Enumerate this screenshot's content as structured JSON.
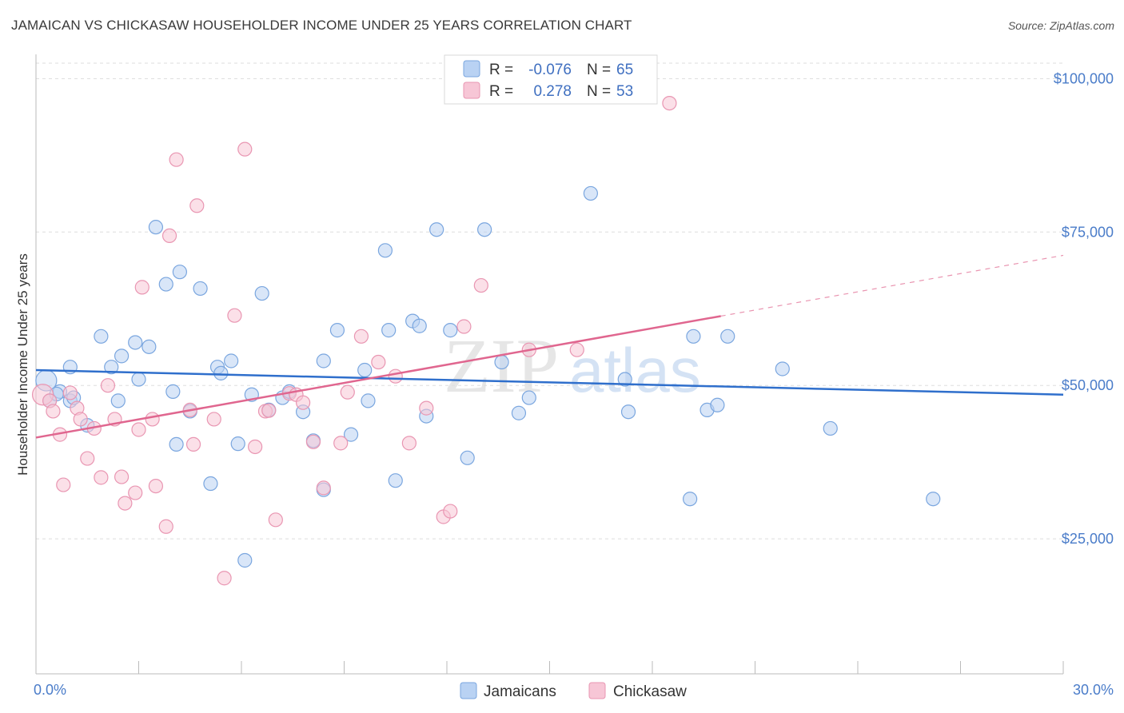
{
  "header": {
    "title": "JAMAICAN VS CHICKASAW HOUSEHOLDER INCOME UNDER 25 YEARS CORRELATION CHART",
    "source": "Source: ZipAtlas.com"
  },
  "watermark": {
    "zip": "ZIP",
    "atlas": "atlas"
  },
  "colors": {
    "jamaican_fill": "#b9d2f3",
    "jamaican_stroke": "#7aa6df",
    "jamaican_line": "#2f6fcc",
    "chickasaw_fill": "#f7c6d6",
    "chickasaw_stroke": "#e996b2",
    "chickasaw_line": "#e0668f",
    "tick_text": "#4a7cc9",
    "grid": "#dddddd"
  },
  "legend": {
    "r_label": "R =",
    "n_label": "N =",
    "rows": [
      {
        "series": "Jamaicans",
        "r": "-0.076",
        "n": "65"
      },
      {
        "series": "Chickasaw",
        "r": "0.278",
        "n": "53"
      }
    ]
  },
  "chart_data": {
    "type": "scatter",
    "title": "JAMAICAN VS CHICKASAW HOUSEHOLDER INCOME UNDER 25 YEARS CORRELATION CHART",
    "xlabel": "",
    "ylabel": "Householder Income Under 25 years",
    "xlim": [
      0,
      30
    ],
    "ylim": [
      3000,
      105000
    ],
    "x_tick_labels": [
      "0.0%",
      "30.0%"
    ],
    "y_ticks": [
      25000,
      50000,
      75000,
      100000
    ],
    "y_tick_labels": [
      "$25,000",
      "$50,000",
      "$75,000",
      "$100,000"
    ],
    "grid": true,
    "series": [
      {
        "name": "Jamaicans",
        "points": [
          [
            0.3,
            50800
          ],
          [
            0.4,
            47500
          ],
          [
            0.7,
            49000
          ],
          [
            1.0,
            53000
          ],
          [
            1.0,
            47500
          ],
          [
            1.5,
            43500
          ],
          [
            1.9,
            58000
          ],
          [
            2.2,
            53000
          ],
          [
            2.4,
            47500
          ],
          [
            2.5,
            54800
          ],
          [
            2.9,
            57000
          ],
          [
            3.0,
            51000
          ],
          [
            3.3,
            56300
          ],
          [
            3.5,
            75800
          ],
          [
            3.8,
            66500
          ],
          [
            4.0,
            49000
          ],
          [
            4.1,
            40400
          ],
          [
            4.2,
            68500
          ],
          [
            4.5,
            45800
          ],
          [
            4.8,
            65800
          ],
          [
            5.1,
            34000
          ],
          [
            5.3,
            53000
          ],
          [
            5.4,
            52000
          ],
          [
            5.7,
            54000
          ],
          [
            5.9,
            40500
          ],
          [
            6.1,
            21500
          ],
          [
            6.3,
            48500
          ],
          [
            6.6,
            65000
          ],
          [
            6.8,
            46000
          ],
          [
            7.2,
            48000
          ],
          [
            7.4,
            49000
          ],
          [
            7.8,
            45700
          ],
          [
            8.1,
            41000
          ],
          [
            8.4,
            54000
          ],
          [
            8.4,
            33000
          ],
          [
            8.8,
            59000
          ],
          [
            9.2,
            42000
          ],
          [
            9.6,
            52500
          ],
          [
            9.7,
            47500
          ],
          [
            10.2,
            72000
          ],
          [
            10.3,
            59000
          ],
          [
            10.5,
            34500
          ],
          [
            11.0,
            60500
          ],
          [
            11.2,
            59700
          ],
          [
            11.4,
            45000
          ],
          [
            11.7,
            75400
          ],
          [
            12.1,
            59000
          ],
          [
            12.6,
            38200
          ],
          [
            13.1,
            75400
          ],
          [
            13.6,
            53800
          ],
          [
            14.1,
            45500
          ],
          [
            14.4,
            48000
          ],
          [
            16.2,
            81300
          ],
          [
            17.2,
            51000
          ],
          [
            17.3,
            45700
          ],
          [
            19.1,
            31500
          ],
          [
            19.2,
            58000
          ],
          [
            19.6,
            46000
          ],
          [
            19.9,
            46800
          ],
          [
            20.2,
            58000
          ],
          [
            21.8,
            52700
          ],
          [
            23.2,
            43000
          ],
          [
            26.2,
            31500
          ],
          [
            0.6,
            48600
          ],
          [
            1.1,
            48000
          ]
        ],
        "trend": {
          "x": [
            0,
            30
          ],
          "y": [
            52500,
            48500
          ]
        }
      },
      {
        "name": "Chickasaw",
        "points": [
          [
            0.2,
            48500
          ],
          [
            0.4,
            47500
          ],
          [
            0.5,
            45800
          ],
          [
            0.7,
            42000
          ],
          [
            0.8,
            33800
          ],
          [
            1.0,
            48800
          ],
          [
            1.2,
            46300
          ],
          [
            1.3,
            44500
          ],
          [
            1.5,
            38100
          ],
          [
            1.7,
            43000
          ],
          [
            1.9,
            35000
          ],
          [
            2.1,
            50000
          ],
          [
            2.3,
            44500
          ],
          [
            2.5,
            35100
          ],
          [
            2.6,
            30800
          ],
          [
            2.9,
            32500
          ],
          [
            3.0,
            42800
          ],
          [
            3.1,
            66000
          ],
          [
            3.4,
            44500
          ],
          [
            3.5,
            33600
          ],
          [
            3.8,
            27000
          ],
          [
            3.9,
            74400
          ],
          [
            4.1,
            86800
          ],
          [
            4.5,
            46000
          ],
          [
            4.6,
            40400
          ],
          [
            4.7,
            79300
          ],
          [
            5.2,
            44500
          ],
          [
            5.5,
            18600
          ],
          [
            5.8,
            61400
          ],
          [
            6.1,
            88500
          ],
          [
            6.4,
            40000
          ],
          [
            6.7,
            45800
          ],
          [
            6.8,
            45900
          ],
          [
            7.0,
            28100
          ],
          [
            7.4,
            48700
          ],
          [
            7.6,
            48500
          ],
          [
            7.8,
            47200
          ],
          [
            8.1,
            40800
          ],
          [
            8.4,
            33300
          ],
          [
            8.9,
            40600
          ],
          [
            9.1,
            48900
          ],
          [
            9.5,
            58000
          ],
          [
            10.0,
            53800
          ],
          [
            10.5,
            51500
          ],
          [
            10.9,
            40600
          ],
          [
            11.4,
            46300
          ],
          [
            11.9,
            28600
          ],
          [
            12.1,
            29500
          ],
          [
            12.5,
            59600
          ],
          [
            13.0,
            66300
          ],
          [
            14.4,
            55800
          ],
          [
            15.8,
            55800
          ],
          [
            18.5,
            96000
          ]
        ],
        "trend": {
          "x": [
            0,
            20
          ],
          "y": [
            41500,
            61300
          ]
        },
        "trend_dashed": {
          "x": [
            20,
            30
          ],
          "y": [
            61300,
            71200
          ]
        }
      }
    ]
  }
}
